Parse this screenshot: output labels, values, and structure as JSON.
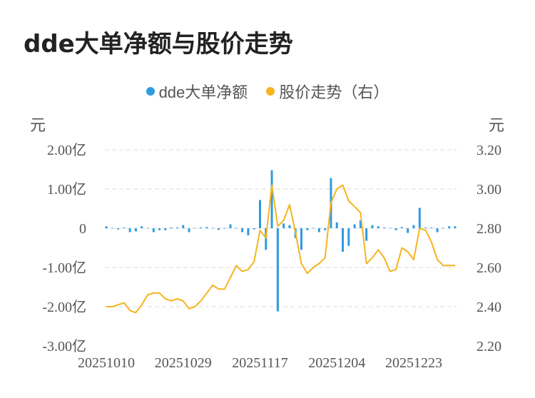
{
  "title": "dde大单净额与股价走势",
  "legend": [
    {
      "name": "dde大单净额",
      "color": "#2f9ae0"
    },
    {
      "name": "股价走势（右）",
      "color": "#f5b41e"
    }
  ],
  "left_unit": "元",
  "right_unit": "元",
  "chart_data": {
    "type": "bar+line",
    "x_ticks": [
      "20251010",
      "20251029",
      "20251117",
      "20251204",
      "20251223"
    ],
    "y_left_ticks": [
      "2.00亿",
      "1.00亿",
      "0",
      "-1.00亿",
      "-2.00亿",
      "-3.00亿"
    ],
    "y_left_range": [
      -3,
      2
    ],
    "y_right_ticks": [
      "3.20",
      "3.00",
      "2.80",
      "2.60",
      "2.40",
      "2.20"
    ],
    "y_right_range": [
      2.2,
      3.2
    ],
    "grid": true,
    "legend_position": "top-center",
    "series": [
      {
        "name": "dde大单净额",
        "type": "bar",
        "axis": "left",
        "unit": "亿",
        "values": [
          0.05,
          0,
          -0.03,
          0.02,
          -0.1,
          -0.08,
          0.05,
          0,
          -0.1,
          -0.05,
          -0.05,
          0.02,
          0.02,
          0.08,
          -0.1,
          0,
          0.02,
          0.03,
          0,
          -0.04,
          0,
          0.1,
          0,
          -0.1,
          -0.18,
          -0.03,
          0.72,
          -0.55,
          1.48,
          -2.12,
          0.12,
          0.08,
          -0.25,
          -0.55,
          -0.05,
          0,
          -0.1,
          -0.05,
          1.28,
          0.15,
          -0.6,
          -0.45,
          0.1,
          0.2,
          -0.32,
          0.08,
          0.05,
          0.02,
          0,
          -0.05,
          0.03,
          -0.12,
          0.08,
          0.52,
          0.02,
          0.02,
          -0.1,
          0,
          0.05,
          0.05
        ]
      },
      {
        "name": "股价走势（右）",
        "type": "line",
        "axis": "right",
        "values": [
          2.4,
          2.4,
          2.41,
          2.42,
          2.38,
          2.37,
          2.41,
          2.46,
          2.47,
          2.47,
          2.44,
          2.43,
          2.44,
          2.43,
          2.39,
          2.4,
          2.43,
          2.47,
          2.51,
          2.49,
          2.49,
          2.55,
          2.61,
          2.58,
          2.59,
          2.63,
          2.79,
          2.75,
          3.02,
          2.81,
          2.84,
          2.92,
          2.78,
          2.62,
          2.57,
          2.6,
          2.62,
          2.65,
          2.93,
          3.0,
          3.02,
          2.94,
          2.91,
          2.88,
          2.62,
          2.65,
          2.69,
          2.65,
          2.58,
          2.59,
          2.7,
          2.68,
          2.64,
          2.8,
          2.79,
          2.73,
          2.64,
          2.61,
          2.61,
          2.61
        ]
      }
    ]
  }
}
